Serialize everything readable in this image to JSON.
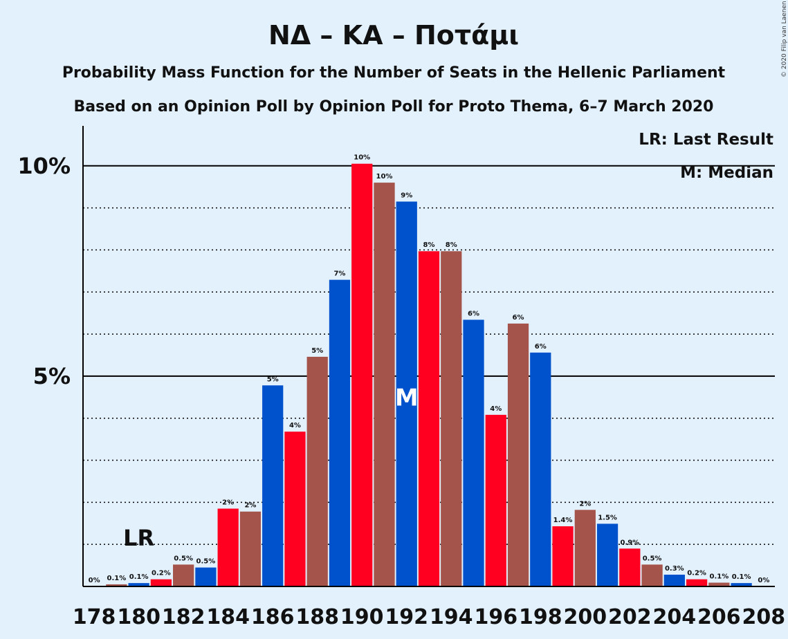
{
  "chart_data": {
    "type": "bar",
    "title": "ΝΔ – ΚΑ – Ποτάμι",
    "subtitle1": "Probability Mass Function for the Number of Seats in the Hellenic Parliament",
    "subtitle2": "Based on an Opinion Poll by Opinion Poll for Proto Thema, 6–7 March 2020",
    "copyright": "© 2020 Filip van Laenen",
    "legend": [
      "LR: Last Result",
      "M: Median"
    ],
    "legend_position": "top-right",
    "ylim": [
      0,
      10.95
    ],
    "yticks": [
      {
        "value": 5,
        "label": "5%"
      },
      {
        "value": 10,
        "label": "10%"
      }
    ],
    "x_tick_labels": [
      "178",
      "180",
      "182",
      "184",
      "186",
      "188",
      "190",
      "192",
      "194",
      "196",
      "198",
      "200",
      "202",
      "204",
      "206",
      "208"
    ],
    "x": [
      178,
      179,
      180,
      181,
      182,
      183,
      184,
      185,
      186,
      187,
      188,
      189,
      190,
      191,
      192,
      193,
      194,
      195,
      196,
      197,
      198,
      199,
      200,
      201,
      202,
      203,
      204,
      205,
      206,
      207,
      208
    ],
    "values": [
      0,
      0.05,
      0.08,
      0.17,
      0.52,
      0.45,
      1.85,
      1.78,
      4.78,
      3.68,
      5.46,
      7.29,
      10.05,
      9.6,
      9.15,
      7.97,
      7.97,
      6.34,
      4.08,
      6.25,
      5.56,
      1.43,
      1.82,
      1.49,
      0.9,
      0.52,
      0.28,
      0.17,
      0.09,
      0.08,
      0
    ],
    "data_labels": [
      "0%",
      "0.1%",
      "0.1%",
      "0.2%",
      "0.5%",
      "0.5%",
      "2%",
      "2%",
      "5%",
      "4%",
      "5%",
      "7%",
      "10%",
      "10%",
      "9%",
      "8%",
      "8%",
      "6%",
      "4%",
      "6%",
      "6%",
      "1.4%",
      "2%",
      "1.5%",
      "0.9%",
      "0.5%",
      "0.3%",
      "0.2%",
      "0.1%",
      "0.1%",
      "0%"
    ],
    "colors": [
      "#0051cc",
      "#a4544a",
      "#0051cc",
      "#ff0021",
      "#a4544a",
      "#0051cc",
      "#ff0021",
      "#a4544a",
      "#0051cc",
      "#ff0021",
      "#a4544a",
      "#0051cc",
      "#ff0021",
      "#a4544a",
      "#0051cc",
      "#ff0021",
      "#a4544a",
      "#0051cc",
      "#ff0021",
      "#a4544a",
      "#0051cc",
      "#ff0021",
      "#a4544a",
      "#0051cc",
      "#ff0021",
      "#a4544a",
      "#0051cc",
      "#ff0021",
      "#a4544a",
      "#0051cc",
      "#ff0021"
    ],
    "last_result": {
      "x": 180,
      "label": "LR"
    },
    "median": {
      "x": 192,
      "label": "M"
    },
    "grid": "dotted lines every 1%, solid lines at 5% and 10%"
  }
}
